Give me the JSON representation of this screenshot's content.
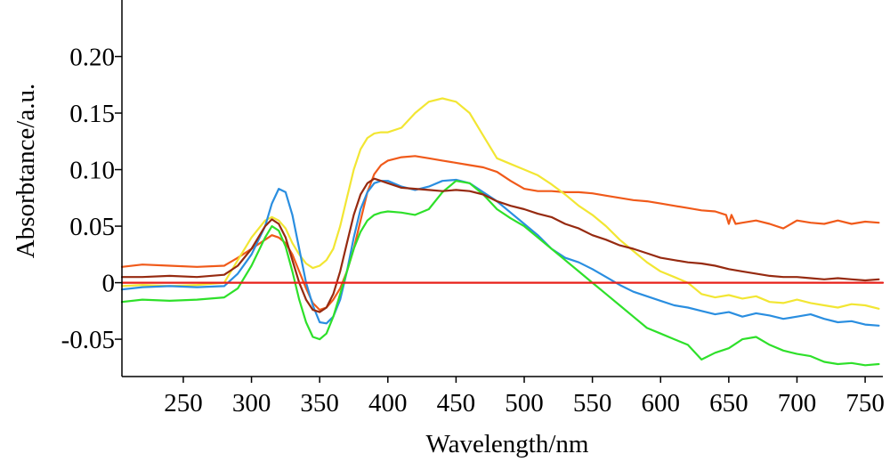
{
  "chart_data": {
    "type": "line",
    "xlabel": "Wavelength/nm",
    "ylabel": "Absorbtance/a.u.",
    "xlim": [
      205,
      763
    ],
    "ylim": [
      -0.083,
      0.25
    ],
    "xticks": [
      250,
      300,
      350,
      400,
      450,
      500,
      550,
      600,
      650,
      700,
      750
    ],
    "xtick_labels": [
      "250",
      "300",
      "350",
      "400",
      "450",
      "500",
      "550",
      "600",
      "650",
      "700",
      "750"
    ],
    "yticks": [
      -0.05,
      0,
      0.05,
      0.1,
      0.15,
      0.2
    ],
    "ytick_labels": [
      "-0.05",
      "0",
      "0.05",
      "0.10",
      "0.15",
      "0.20"
    ],
    "grid": false,
    "legend": "none",
    "series": [
      {
        "color": "#f05a1a",
        "x": [
          205,
          220,
          240,
          260,
          280,
          290,
          300,
          310,
          315,
          320,
          325,
          330,
          335,
          340,
          345,
          350,
          355,
          360,
          365,
          370,
          375,
          380,
          385,
          390,
          395,
          400,
          410,
          420,
          430,
          440,
          450,
          460,
          470,
          480,
          490,
          500,
          510,
          520,
          530,
          540,
          550,
          560,
          570,
          580,
          590,
          600,
          610,
          620,
          630,
          640,
          648,
          650,
          652,
          655,
          660,
          670,
          680,
          690,
          700,
          710,
          720,
          730,
          740,
          750,
          760
        ],
        "y": [
          0.014,
          0.016,
          0.015,
          0.014,
          0.015,
          0.022,
          0.03,
          0.038,
          0.042,
          0.04,
          0.035,
          0.025,
          0.01,
          -0.005,
          -0.018,
          -0.024,
          -0.022,
          -0.015,
          -0.005,
          0.01,
          0.03,
          0.055,
          0.08,
          0.096,
          0.104,
          0.108,
          0.111,
          0.112,
          0.11,
          0.108,
          0.106,
          0.104,
          0.102,
          0.098,
          0.09,
          0.083,
          0.081,
          0.081,
          0.08,
          0.08,
          0.079,
          0.077,
          0.075,
          0.073,
          0.072,
          0.07,
          0.068,
          0.066,
          0.064,
          0.063,
          0.06,
          0.052,
          0.06,
          0.052,
          0.053,
          0.055,
          0.052,
          0.048,
          0.055,
          0.053,
          0.052,
          0.055,
          0.052,
          0.054,
          0.053
        ]
      },
      {
        "color": "#f2e633",
        "x": [
          205,
          220,
          240,
          260,
          280,
          290,
          300,
          310,
          315,
          320,
          325,
          330,
          335,
          340,
          345,
          350,
          355,
          360,
          365,
          370,
          375,
          380,
          385,
          390,
          395,
          400,
          410,
          420,
          430,
          440,
          450,
          460,
          470,
          480,
          490,
          500,
          510,
          520,
          530,
          540,
          550,
          560,
          570,
          580,
          590,
          600,
          610,
          620,
          630,
          640,
          650,
          660,
          670,
          680,
          690,
          700,
          710,
          720,
          730,
          740,
          750,
          760
        ],
        "y": [
          -0.003,
          -0.002,
          -0.003,
          -0.002,
          0.0,
          0.02,
          0.04,
          0.055,
          0.058,
          0.055,
          0.048,
          0.035,
          0.025,
          0.017,
          0.013,
          0.015,
          0.02,
          0.03,
          0.05,
          0.075,
          0.1,
          0.118,
          0.128,
          0.132,
          0.133,
          0.133,
          0.137,
          0.15,
          0.16,
          0.163,
          0.16,
          0.15,
          0.13,
          0.11,
          0.105,
          0.1,
          0.095,
          0.087,
          0.078,
          0.068,
          0.06,
          0.05,
          0.038,
          0.028,
          0.018,
          0.01,
          0.005,
          0.0,
          -0.01,
          -0.013,
          -0.011,
          -0.014,
          -0.012,
          -0.017,
          -0.018,
          -0.015,
          -0.018,
          -0.02,
          -0.022,
          -0.019,
          -0.02,
          -0.023
        ]
      },
      {
        "color": "#2a8ee0",
        "x": [
          205,
          220,
          240,
          260,
          280,
          290,
          300,
          310,
          315,
          320,
          325,
          330,
          335,
          340,
          345,
          350,
          355,
          360,
          365,
          370,
          375,
          380,
          385,
          390,
          395,
          400,
          410,
          420,
          430,
          440,
          450,
          460,
          470,
          480,
          490,
          500,
          510,
          520,
          530,
          540,
          550,
          560,
          570,
          580,
          590,
          600,
          610,
          620,
          630,
          640,
          650,
          660,
          670,
          680,
          690,
          700,
          710,
          720,
          730,
          740,
          750,
          760
        ],
        "y": [
          -0.006,
          -0.004,
          -0.003,
          -0.004,
          -0.003,
          0.008,
          0.025,
          0.05,
          0.07,
          0.083,
          0.08,
          0.06,
          0.03,
          0.0,
          -0.02,
          -0.035,
          -0.036,
          -0.03,
          -0.015,
          0.01,
          0.04,
          0.065,
          0.08,
          0.088,
          0.09,
          0.09,
          0.085,
          0.082,
          0.085,
          0.09,
          0.091,
          0.088,
          0.08,
          0.072,
          0.062,
          0.052,
          0.042,
          0.03,
          0.022,
          0.018,
          0.012,
          0.005,
          -0.002,
          -0.008,
          -0.012,
          -0.016,
          -0.02,
          -0.022,
          -0.025,
          -0.028,
          -0.026,
          -0.03,
          -0.027,
          -0.029,
          -0.032,
          -0.03,
          -0.028,
          -0.032,
          -0.035,
          -0.034,
          -0.037,
          -0.038
        ]
      },
      {
        "color": "#2ee02a",
        "x": [
          205,
          220,
          240,
          260,
          280,
          290,
          300,
          310,
          315,
          320,
          325,
          330,
          335,
          340,
          345,
          350,
          355,
          360,
          365,
          370,
          375,
          380,
          385,
          390,
          395,
          400,
          410,
          420,
          430,
          440,
          450,
          460,
          470,
          480,
          490,
          500,
          510,
          520,
          530,
          540,
          550,
          560,
          570,
          580,
          590,
          600,
          610,
          620,
          630,
          640,
          650,
          660,
          670,
          680,
          690,
          700,
          710,
          720,
          730,
          740,
          750,
          760
        ],
        "y": [
          -0.017,
          -0.015,
          -0.016,
          -0.015,
          -0.013,
          -0.005,
          0.015,
          0.04,
          0.05,
          0.046,
          0.032,
          0.01,
          -0.015,
          -0.035,
          -0.048,
          -0.05,
          -0.045,
          -0.03,
          -0.01,
          0.01,
          0.03,
          0.045,
          0.055,
          0.06,
          0.062,
          0.063,
          0.062,
          0.06,
          0.065,
          0.08,
          0.09,
          0.088,
          0.078,
          0.065,
          0.057,
          0.05,
          0.04,
          0.03,
          0.02,
          0.01,
          0.0,
          -0.01,
          -0.02,
          -0.03,
          -0.04,
          -0.045,
          -0.05,
          -0.055,
          -0.068,
          -0.062,
          -0.058,
          -0.05,
          -0.048,
          -0.055,
          -0.06,
          -0.063,
          -0.065,
          -0.07,
          -0.072,
          -0.071,
          -0.073,
          -0.072
        ]
      },
      {
        "color": "#962a10",
        "x": [
          205,
          220,
          240,
          260,
          280,
          290,
          300,
          310,
          315,
          320,
          325,
          330,
          335,
          340,
          345,
          350,
          355,
          360,
          365,
          370,
          375,
          380,
          385,
          390,
          395,
          400,
          410,
          420,
          430,
          440,
          450,
          460,
          470,
          480,
          490,
          500,
          510,
          520,
          530,
          540,
          550,
          560,
          570,
          580,
          590,
          600,
          610,
          620,
          630,
          640,
          650,
          660,
          670,
          680,
          690,
          700,
          710,
          720,
          730,
          740,
          750,
          760
        ],
        "y": [
          0.005,
          0.005,
          0.006,
          0.005,
          0.007,
          0.015,
          0.03,
          0.05,
          0.056,
          0.052,
          0.04,
          0.02,
          0.0,
          -0.015,
          -0.024,
          -0.026,
          -0.022,
          -0.01,
          0.01,
          0.035,
          0.06,
          0.078,
          0.088,
          0.092,
          0.09,
          0.088,
          0.084,
          0.083,
          0.082,
          0.081,
          0.082,
          0.081,
          0.078,
          0.072,
          0.068,
          0.065,
          0.061,
          0.058,
          0.052,
          0.048,
          0.042,
          0.038,
          0.033,
          0.03,
          0.026,
          0.022,
          0.02,
          0.018,
          0.017,
          0.015,
          0.012,
          0.01,
          0.008,
          0.006,
          0.005,
          0.005,
          0.004,
          0.003,
          0.004,
          0.003,
          0.002,
          0.003
        ]
      },
      {
        "color": "#e8201a",
        "x": [
          205,
          763
        ],
        "y": [
          0,
          0
        ]
      }
    ]
  }
}
